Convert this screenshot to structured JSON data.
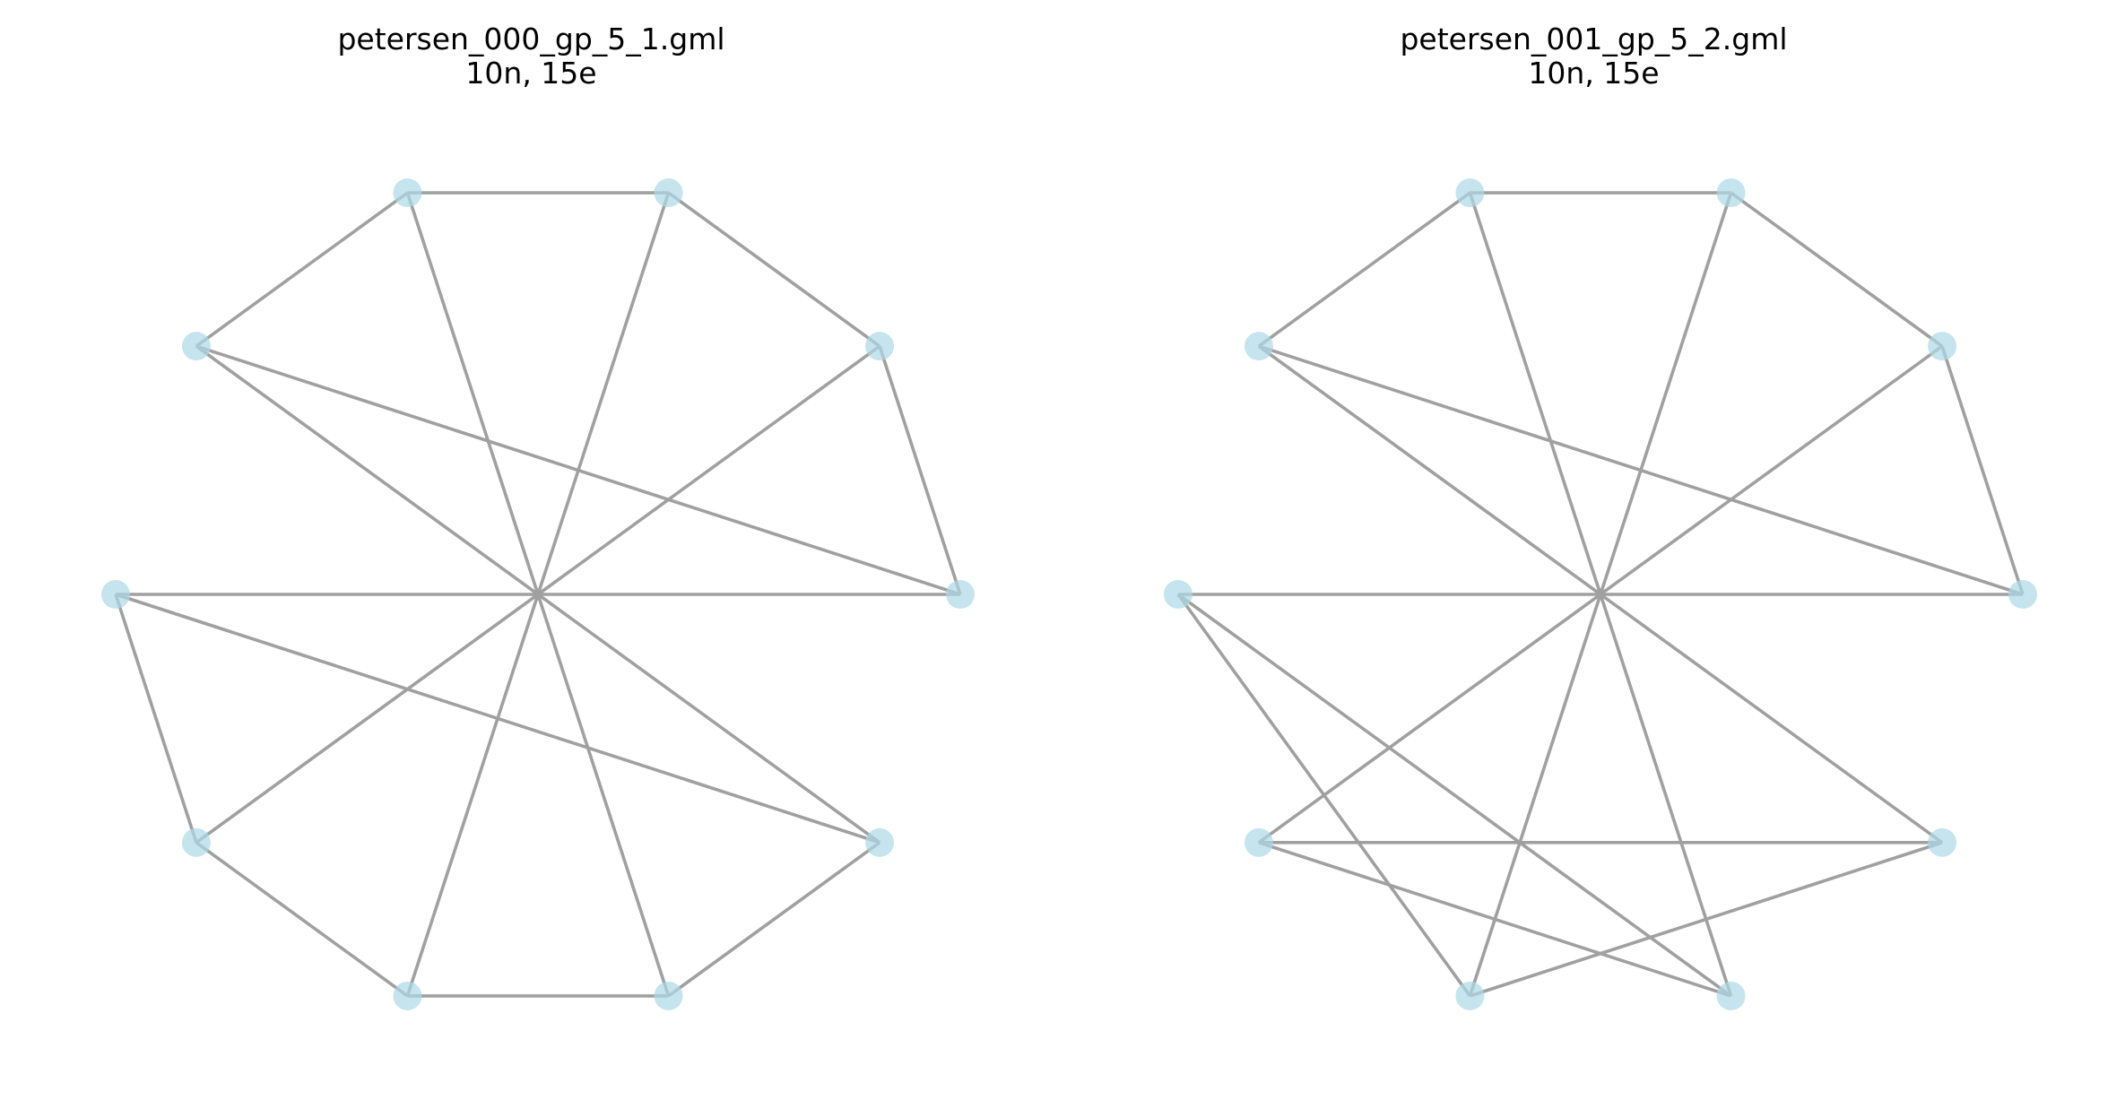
{
  "colors": {
    "node": "#add8e6",
    "node_opacity": 0.7,
    "edge": "#a0a0a0",
    "background": "#ffffff"
  },
  "graphs": [
    {
      "title": "petersen_000_gp_5_1.gml",
      "subtitle": "10n, 15e",
      "node_count": 10,
      "edges": [
        [
          0,
          1
        ],
        [
          1,
          2
        ],
        [
          2,
          3
        ],
        [
          3,
          4
        ],
        [
          4,
          0
        ],
        [
          5,
          6
        ],
        [
          6,
          7
        ],
        [
          7,
          8
        ],
        [
          8,
          9
        ],
        [
          9,
          5
        ],
        [
          0,
          5
        ],
        [
          1,
          6
        ],
        [
          2,
          7
        ],
        [
          3,
          8
        ],
        [
          4,
          9
        ]
      ]
    },
    {
      "title": "petersen_001_gp_5_2.gml",
      "subtitle": "10n, 15e",
      "node_count": 10,
      "edges": [
        [
          0,
          1
        ],
        [
          1,
          2
        ],
        [
          2,
          3
        ],
        [
          3,
          4
        ],
        [
          4,
          0
        ],
        [
          5,
          7
        ],
        [
          7,
          9
        ],
        [
          9,
          6
        ],
        [
          6,
          8
        ],
        [
          8,
          5
        ],
        [
          0,
          5
        ],
        [
          1,
          6
        ],
        [
          2,
          7
        ],
        [
          3,
          8
        ],
        [
          4,
          9
        ]
      ]
    }
  ]
}
